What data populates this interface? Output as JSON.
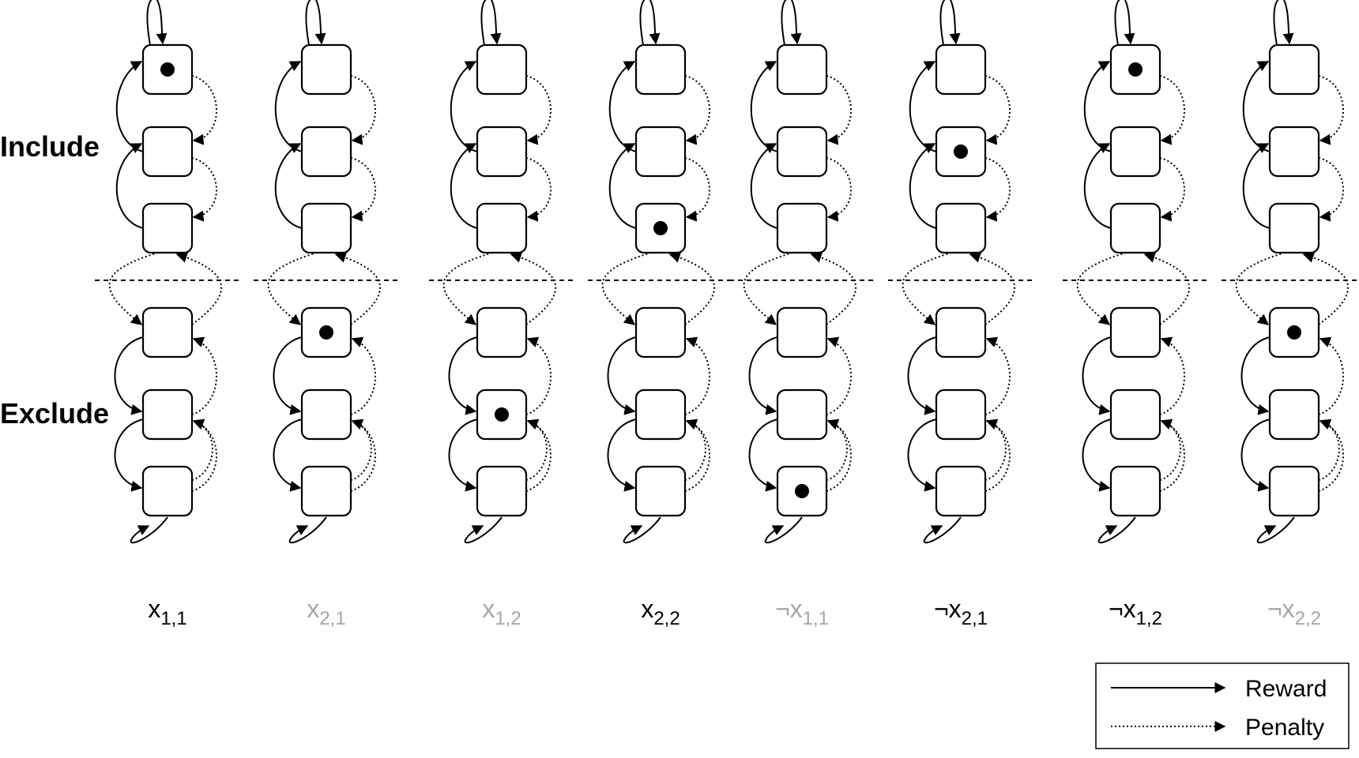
{
  "side_labels": {
    "include": "Include",
    "exclude": "Exclude"
  },
  "automata": [
    {
      "literal": "x",
      "negated": false,
      "sub": "1,1",
      "active": true,
      "state": 6
    },
    {
      "literal": "x",
      "negated": false,
      "sub": "2,1",
      "active": false,
      "state": 3
    },
    {
      "literal": "x",
      "negated": false,
      "sub": "1,2",
      "active": false,
      "state": 2
    },
    {
      "literal": "x",
      "negated": false,
      "sub": "2,2",
      "active": true,
      "state": 4
    },
    {
      "literal": "x",
      "negated": true,
      "sub": "1,1",
      "active": false,
      "state": 1
    },
    {
      "literal": "x",
      "negated": true,
      "sub": "2,1",
      "active": true,
      "state": 5
    },
    {
      "literal": "x",
      "negated": true,
      "sub": "1,2",
      "active": true,
      "state": 6
    },
    {
      "literal": "x",
      "negated": true,
      "sub": "2,2",
      "active": false,
      "state": 3
    }
  ],
  "legend": {
    "reward": "Reward",
    "penalty": "Penalty"
  },
  "colors": {
    "active_label": "#000000",
    "inactive_label": "#a6a6a6"
  }
}
